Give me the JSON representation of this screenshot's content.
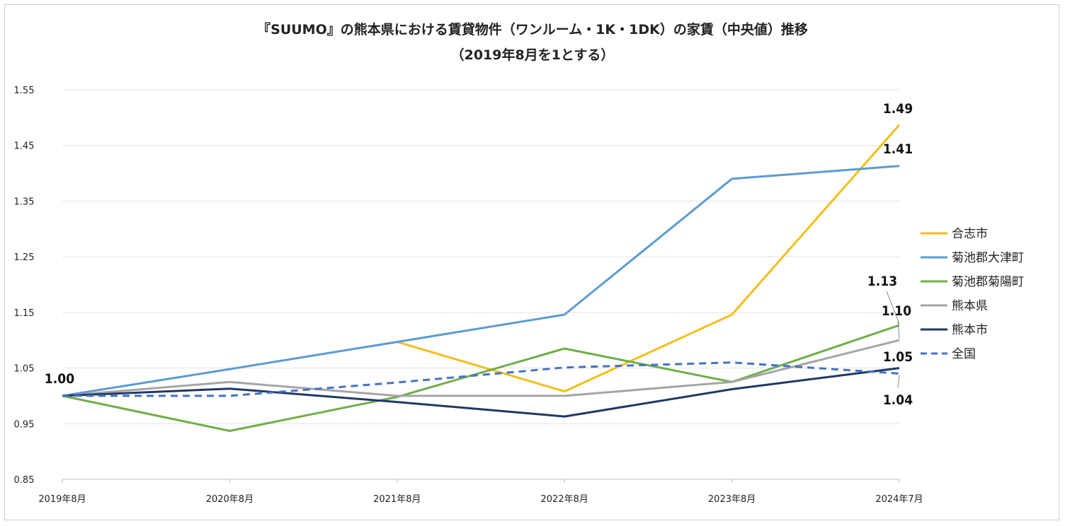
{
  "chart_data": {
    "type": "line",
    "title": "『SUUMO』の熊本県における賃貸物件（ワンルーム・1K・1DK）の家賃（中央値）推移",
    "subtitle": "（2019年8月を1とする）",
    "xlabel": "",
    "ylabel": "",
    "categories": [
      "2019年8月",
      "2020年8月",
      "2021年8月",
      "2022年8月",
      "2023年8月",
      "2024年7月"
    ],
    "ylim": [
      0.85,
      1.55
    ],
    "yticks": [
      0.85,
      0.95,
      1.05,
      1.15,
      1.25,
      1.35,
      1.45,
      1.55
    ],
    "ytick_labels": [
      "0.85",
      "0.95",
      "1.05",
      "1.15",
      "1.25",
      "1.35",
      "1.45",
      "1.55"
    ],
    "grid": true,
    "legend_position": "right",
    "series": [
      {
        "name": "合志市",
        "color": "#F5BE1A",
        "dash": false,
        "values": [
          null,
          null,
          1.097,
          1.008,
          1.146,
          1.487
        ]
      },
      {
        "name": "菊池郡大津町",
        "color": "#5B9BD5",
        "dash": false,
        "values": [
          1.0,
          1.048,
          1.097,
          1.146,
          1.39,
          1.413
        ]
      },
      {
        "name": "菊池郡菊陽町",
        "color": "#70AD47",
        "dash": false,
        "values": [
          1.0,
          0.937,
          0.998,
          1.085,
          1.025,
          1.127
        ]
      },
      {
        "name": "熊本県",
        "color": "#A5A5A5",
        "dash": false,
        "values": [
          1.0,
          1.025,
          1.0,
          1.0,
          1.025,
          1.1
        ]
      },
      {
        "name": "熊本市",
        "color": "#203864",
        "dash": false,
        "values": [
          1.0,
          1.013,
          0.989,
          0.963,
          1.012,
          1.05
        ]
      },
      {
        "name": "全国",
        "color": "#4472C4",
        "dash": true,
        "values": [
          1.0,
          1.0,
          1.024,
          1.051,
          1.06,
          1.04
        ]
      }
    ],
    "annotations": [
      {
        "text": "1.00"
      },
      {
        "text": "1.49"
      },
      {
        "text": "1.41"
      },
      {
        "text": "1.13"
      },
      {
        "text": "1.10"
      },
      {
        "text": "1.05"
      },
      {
        "text": "1.04"
      }
    ]
  }
}
